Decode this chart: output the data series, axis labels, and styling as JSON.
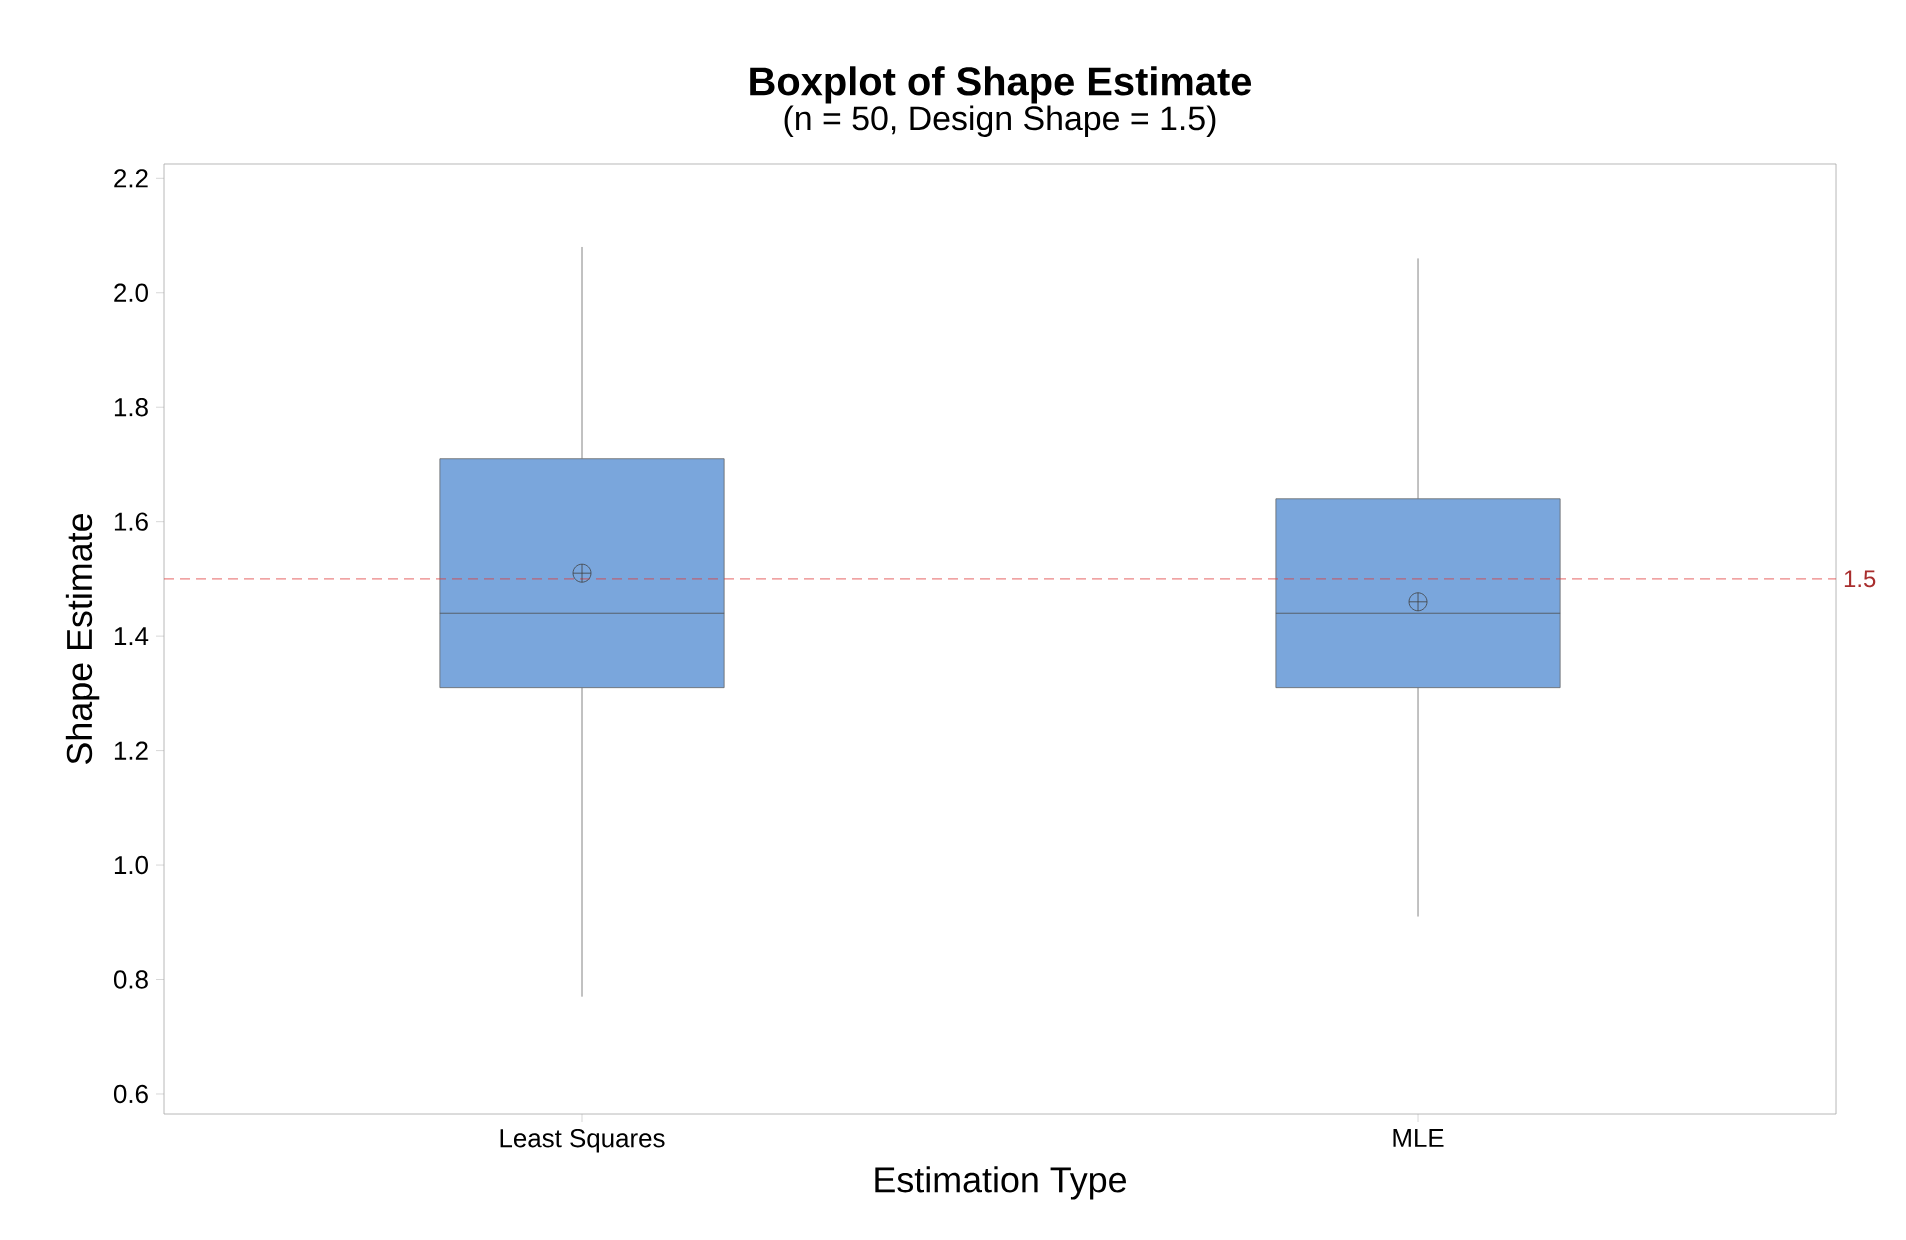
{
  "chart_data": {
    "type": "box",
    "title": "Boxplot of Shape Estimate",
    "subtitle": "(n = 50, Design Shape = 1.5)",
    "xlabel": "Estimation Type",
    "ylabel": "Shape Estimate",
    "categories": [
      "Least Squares",
      "MLE"
    ],
    "color": "#7aa6dc",
    "boxes": [
      {
        "low": 0.77,
        "q1": 1.31,
        "median": 1.44,
        "q3": 1.71,
        "high": 2.08,
        "mean": 1.51
      },
      {
        "low": 0.91,
        "q1": 1.31,
        "median": 1.44,
        "q3": 1.64,
        "high": 2.06,
        "mean": 1.46
      }
    ],
    "ylim": [
      0.565,
      2.225
    ],
    "yticks": [
      0.6,
      0.8,
      {
        "value": 1,
        "label": "1.0"
      },
      1.2,
      1.4,
      1.6,
      1.8,
      {
        "value": 2,
        "label": "2.0"
      },
      2.2
    ],
    "ref_lines": [
      {
        "axis": "y",
        "value": 1.5,
        "label": "1.5",
        "color": "#e03c3c",
        "line_style": "dashed"
      }
    ]
  }
}
